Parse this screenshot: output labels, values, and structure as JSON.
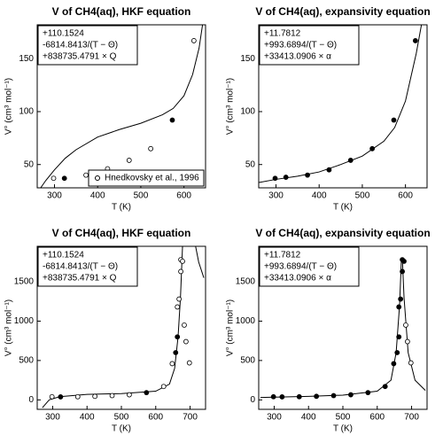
{
  "chart_data": [
    {
      "type": "scatter",
      "title": "V of CH4(aq), HKF equation",
      "annotation": [
        "+110.1524",
        "-6814.8413/(T − Θ)",
        "+838735.4791 × Q"
      ],
      "xlabel": "T (K)",
      "ylabel": "V° (cm³ mol⁻¹)",
      "xlim": [
        260,
        650
      ],
      "ylim": [
        28,
        182
      ],
      "xticks": [
        300,
        400,
        500,
        600
      ],
      "yticks": [
        50,
        100,
        150
      ],
      "points": {
        "x": [
          298,
          323,
          373,
          423,
          473,
          523,
          573,
          623
        ],
        "values": [
          37,
          37,
          40,
          46,
          54,
          65,
          92,
          167
        ],
        "filled": [
          false,
          true,
          false,
          false,
          false,
          false,
          true,
          false
        ]
      },
      "curve": {
        "x": [
          268,
          280,
          300,
          325,
          350,
          400,
          450,
          500,
          550,
          575,
          600,
          620,
          635,
          643
        ],
        "values": [
          28,
          35,
          45,
          56,
          64,
          76,
          83,
          89,
          97,
          103,
          115,
          135,
          160,
          182
        ]
      },
      "legend": {
        "label": "Hnedkovsky et al., 1996",
        "loc": "lower right"
      }
    },
    {
      "type": "scatter",
      "title": "V of CH4(aq), expansivity equation",
      "annotation": [
        "+11.7812",
        "+993.6894/(T − Θ)",
        "+33413.0906 × α"
      ],
      "xlabel": "T (K)",
      "ylabel": "V° (cm³ mol⁻¹)",
      "xlim": [
        260,
        650
      ],
      "ylim": [
        28,
        182
      ],
      "xticks": [
        300,
        400,
        500,
        600
      ],
      "yticks": [
        50,
        100,
        150
      ],
      "points": {
        "x": [
          298,
          323,
          373,
          423,
          473,
          523,
          573,
          623
        ],
        "values": [
          37,
          38,
          40,
          45,
          54,
          65,
          92,
          167
        ],
        "filled": [
          true,
          true,
          true,
          true,
          true,
          true,
          true,
          true
        ]
      },
      "curve": {
        "x": [
          260,
          300,
          350,
          400,
          450,
          500,
          550,
          575,
          600,
          625,
          637
        ],
        "values": [
          33,
          36,
          39,
          43,
          50,
          58,
          72,
          85,
          110,
          155,
          182
        ]
      }
    },
    {
      "type": "scatter",
      "title": "V of CH4(aq), HKF equation",
      "annotation": [
        "+110.1524",
        "-6814.8413/(T − Θ)",
        "+838735.4791 × Q"
      ],
      "xlabel": "T (K)",
      "ylabel": "V° (cm³ mol⁻¹)",
      "xlim": [
        255,
        745
      ],
      "ylim": [
        -120,
        1950
      ],
      "xticks": [
        300,
        400,
        500,
        600,
        700
      ],
      "yticks": [
        0,
        500,
        1000,
        1500
      ],
      "points": {
        "x": [
          298,
          323,
          373,
          423,
          473,
          523,
          573,
          623,
          648,
          658,
          663,
          663,
          668,
          673,
          673,
          678,
          683,
          688,
          698
        ],
        "values": [
          40,
          38,
          40,
          45,
          54,
          65,
          92,
          170,
          460,
          600,
          800,
          1180,
          1280,
          1630,
          1780,
          1760,
          950,
          740,
          470
        ],
        "filled": [
          false,
          true,
          false,
          false,
          false,
          false,
          true,
          false,
          false,
          true,
          true,
          false,
          false,
          false,
          false,
          false,
          false,
          false,
          false
        ]
      },
      "curve": {
        "x": [
          270,
          290,
          320,
          400,
          500,
          600,
          640,
          655,
          665,
          672,
          678,
          700,
          716,
          725,
          740
        ],
        "values": [
          -100,
          0,
          40,
          70,
          80,
          110,
          200,
          400,
          800,
          1300,
          1950,
          null,
          1950,
          1750,
          1550
        ]
      }
    },
    {
      "type": "scatter",
      "title": "V of CH4(aq), expansivity equation",
      "annotation": [
        "+11.7812",
        "+993.6894/(T − Θ)",
        "+33413.0906 × α"
      ],
      "xlabel": "T (K)",
      "ylabel": "V° (cm³ mol⁻¹)",
      "xlim": [
        255,
        745
      ],
      "ylim": [
        -120,
        1950
      ],
      "xticks": [
        300,
        400,
        500,
        600,
        700
      ],
      "yticks": [
        0,
        500,
        1000,
        1500
      ],
      "points": {
        "x": [
          298,
          323,
          373,
          423,
          473,
          523,
          573,
          623,
          648,
          658,
          663,
          663,
          668,
          673,
          673,
          678,
          683,
          688,
          698
        ],
        "values": [
          40,
          38,
          40,
          45,
          54,
          65,
          92,
          170,
          460,
          600,
          800,
          1180,
          1280,
          1630,
          1780,
          1760,
          950,
          740,
          470
        ],
        "filled": [
          true,
          true,
          true,
          true,
          true,
          true,
          true,
          true,
          true,
          true,
          true,
          true,
          true,
          true,
          true,
          true,
          false,
          false,
          false
        ]
      },
      "curve": {
        "x": [
          260,
          400,
          500,
          600,
          640,
          655,
          665,
          670,
          673,
          678,
          690,
          710,
          740
        ],
        "values": [
          30,
          45,
          60,
          110,
          250,
          600,
          1200,
          1750,
          1800,
          1300,
          600,
          250,
          120
        ]
      }
    }
  ]
}
